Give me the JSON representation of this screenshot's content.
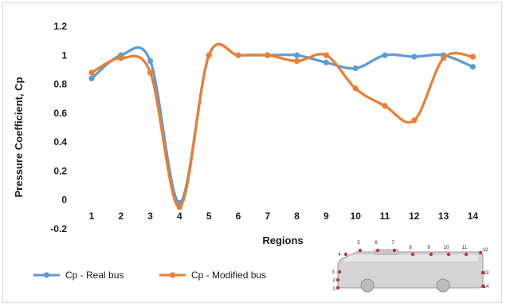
{
  "chart_data": {
    "type": "line",
    "xlabel": "Regions",
    "ylabel": "Pressure Coefficient, Cp",
    "ylim": [
      -0.2,
      1.2
    ],
    "yticks": [
      "-0.2",
      "0",
      "0.2",
      "0.4",
      "0.6",
      "0.8",
      "1",
      "1.2"
    ],
    "categories": [
      "1",
      "2",
      "3",
      "4",
      "5",
      "6",
      "7",
      "8",
      "9",
      "10",
      "11",
      "12",
      "13",
      "14"
    ],
    "grid": false,
    "legend_position": "bottom-left",
    "smooth": true,
    "series": [
      {
        "name": "Cp - Real bus",
        "color": "#5b9bd5",
        "values": [
          0.84,
          1.0,
          0.96,
          -0.02,
          1.0,
          1.0,
          1.0,
          1.0,
          0.95,
          0.91,
          1.0,
          0.99,
          1.0,
          0.92
        ]
      },
      {
        "name": "Cp - Modified bus",
        "color": "#ed7d31",
        "values": [
          0.88,
          0.98,
          0.88,
          -0.05,
          1.0,
          1.0,
          1.0,
          0.96,
          1.0,
          0.77,
          0.65,
          0.55,
          0.98,
          0.99
        ]
      }
    ],
    "inset": {
      "icon": "bus-side-view-icon",
      "labels": [
        "1",
        "2",
        "3",
        "4",
        "5",
        "6",
        "7",
        "8",
        "9",
        "10",
        "11",
        "12",
        "13",
        "14"
      ]
    }
  }
}
